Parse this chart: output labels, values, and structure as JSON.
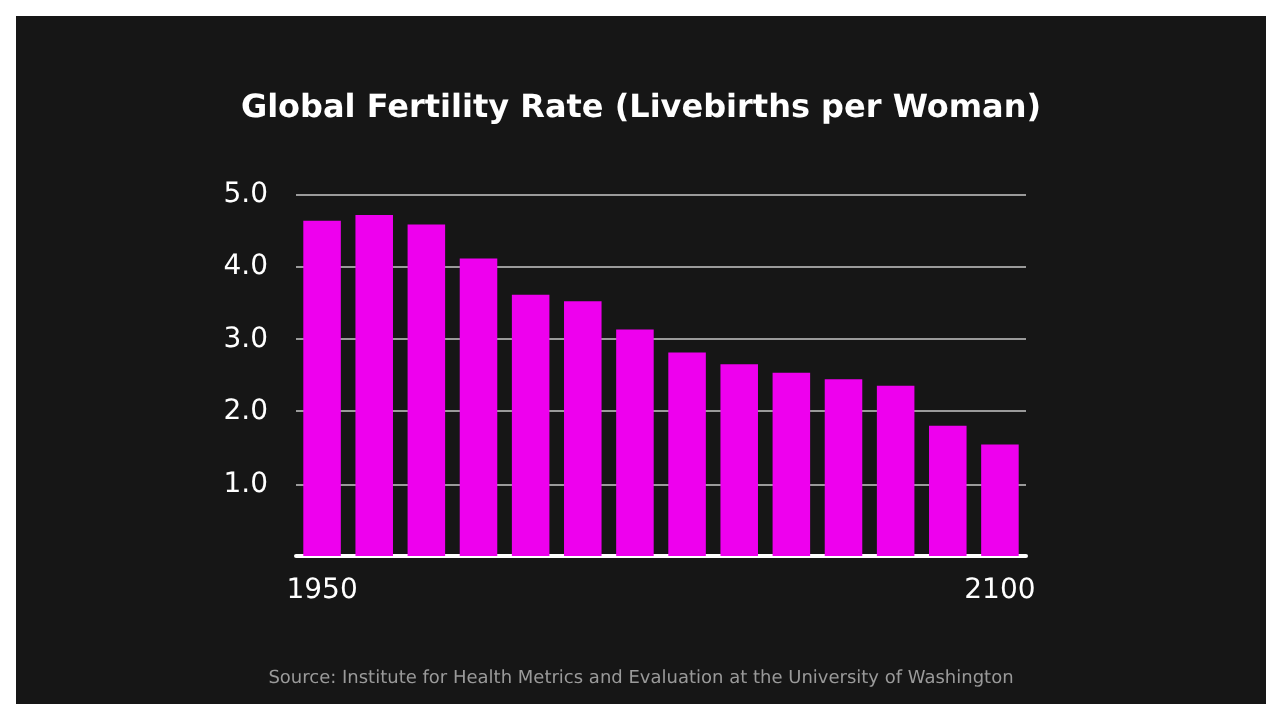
{
  "chart_data": {
    "type": "bar",
    "title": "Global Fertility Rate (Livebirths per Woman)",
    "categories": [
      "1950",
      null,
      null,
      null,
      null,
      null,
      null,
      null,
      null,
      null,
      null,
      null,
      null,
      "2100"
    ],
    "values": [
      4.63,
      4.71,
      4.58,
      4.11,
      3.61,
      3.52,
      3.13,
      2.81,
      2.65,
      2.53,
      2.44,
      2.35,
      1.8,
      1.54
    ],
    "color": "#ee00ee",
    "ylim": [
      0,
      5
    ],
    "yticks": [
      {
        "value": 1,
        "label": "1.0"
      },
      {
        "value": 2,
        "label": "2.0"
      },
      {
        "value": 3,
        "label": "3.0"
      },
      {
        "value": 4,
        "label": "4.0"
      },
      {
        "value": 5,
        "label": "5.0"
      }
    ],
    "grid": true,
    "annotations": [
      "Source: Institute for Health Metrics and Evaluation at the University of Washington"
    ]
  }
}
